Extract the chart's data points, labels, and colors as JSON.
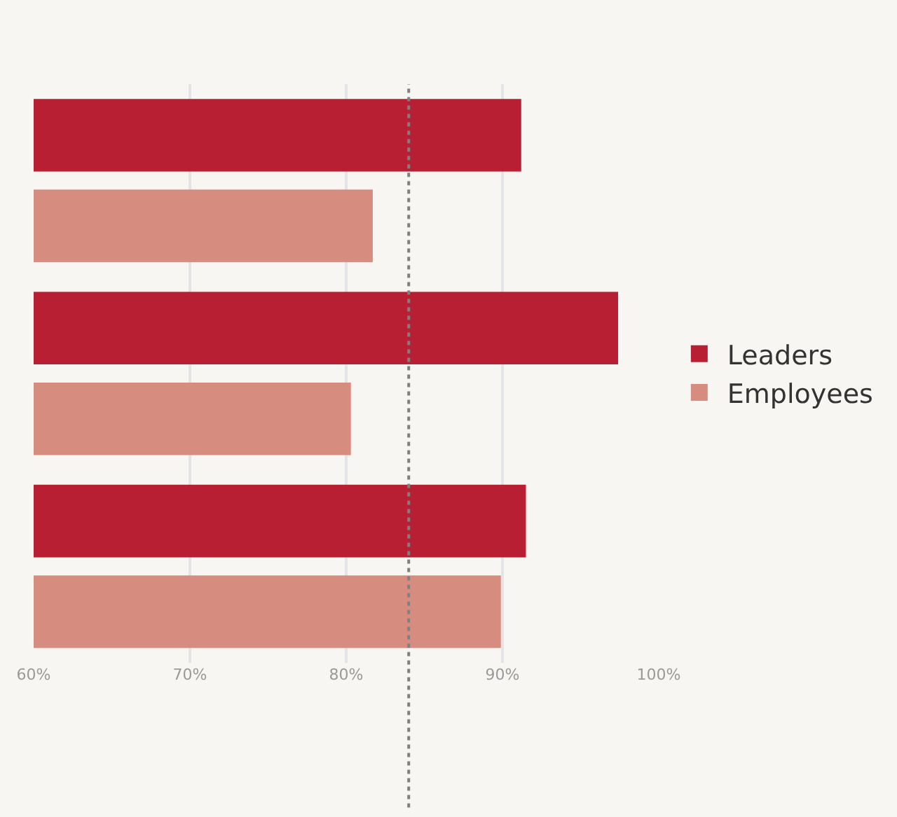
{
  "chart_data": {
    "type": "bar",
    "orientation": "horizontal",
    "categories": [
      null,
      null,
      null
    ],
    "series": [
      {
        "name": "Leaders",
        "color": "#b91f32",
        "values": [
          91.2,
          97.4,
          91.5
        ]
      },
      {
        "name": "Employees",
        "color": "#d78c80",
        "values": [
          81.7,
          80.3,
          89.9
        ]
      }
    ],
    "xlim": [
      60,
      100
    ],
    "xticks": [
      {
        "value": 60,
        "label": "60%"
      },
      {
        "value": 70,
        "label": "70%"
      },
      {
        "value": 80,
        "label": "80%"
      },
      {
        "value": 90,
        "label": "90%"
      },
      {
        "value": 100,
        "label": "100%"
      }
    ],
    "ref_lines": [
      {
        "axis": "x",
        "value": 84,
        "label": null,
        "color": "#808080",
        "line_style": "dotted"
      }
    ],
    "grid": "x",
    "legend": "right",
    "tick_labels": "x"
  }
}
